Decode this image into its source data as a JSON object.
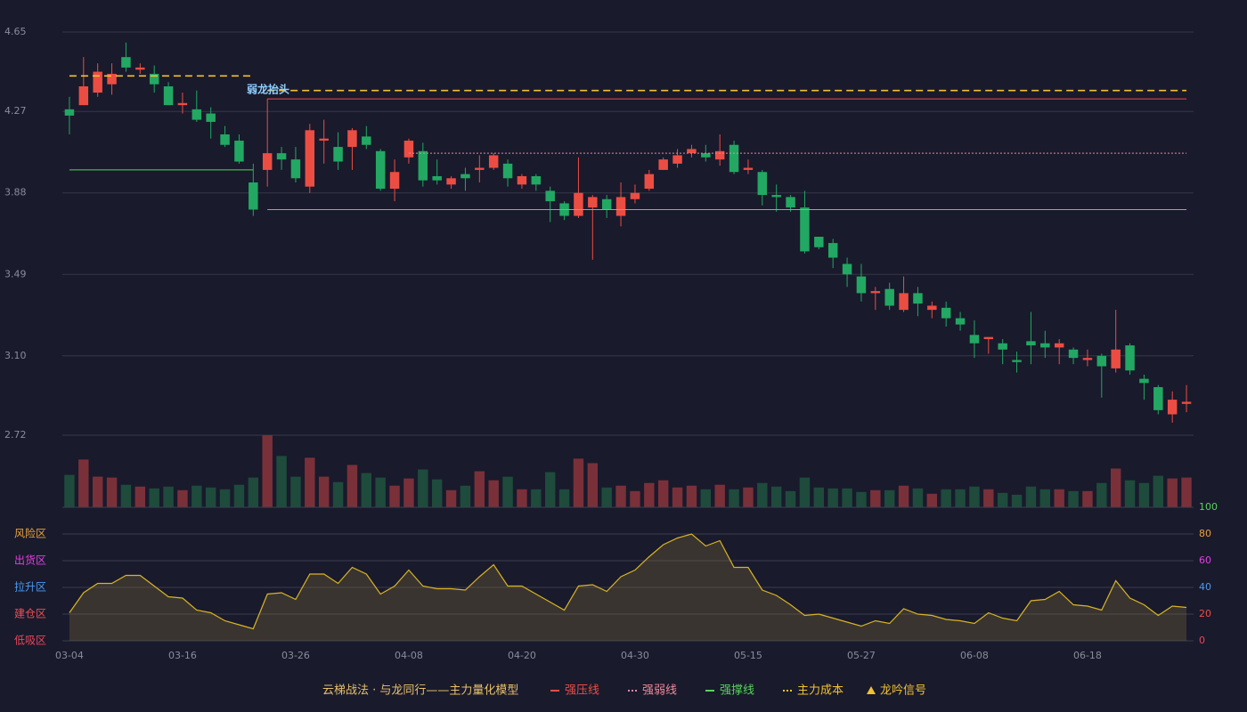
{
  "chart_data": [
    {
      "type": "candlestick",
      "categories": [
        "03-04",
        null,
        null,
        null,
        null,
        null,
        null,
        null,
        "03-16",
        null,
        null,
        null,
        null,
        null,
        null,
        null,
        "03-26",
        null,
        null,
        null,
        null,
        null,
        null,
        null,
        "04-08",
        null,
        null,
        null,
        null,
        null,
        null,
        null,
        "04-20",
        null,
        null,
        null,
        null,
        null,
        null,
        null,
        "04-30",
        null,
        null,
        null,
        null,
        null,
        null,
        null,
        "05-15",
        null,
        null,
        null,
        null,
        null,
        null,
        null,
        "05-27",
        null,
        null,
        null,
        null,
        null,
        null,
        null,
        "06-08",
        null,
        null,
        null,
        null,
        null,
        null,
        null,
        "06-18",
        null,
        null,
        null,
        null,
        null,
        null,
        null
      ],
      "open": [
        4.28,
        4.3,
        4.36,
        4.4,
        4.53,
        4.47,
        4.45,
        4.39,
        4.3,
        4.28,
        4.26,
        4.16,
        4.13,
        3.93,
        3.99,
        4.07,
        4.04,
        3.91,
        4.13,
        4.1,
        4.1,
        4.15,
        4.08,
        3.9,
        4.05,
        4.08,
        3.96,
        3.92,
        3.97,
        3.99,
        4.0,
        4.02,
        3.92,
        3.96,
        3.89,
        3.83,
        3.77,
        3.81,
        3.85,
        3.77,
        3.85,
        3.9,
        3.99,
        4.02,
        4.07,
        4.07,
        4.04,
        4.11,
        3.99,
        3.98,
        3.87,
        3.86,
        3.81,
        3.67,
        3.64,
        3.54,
        3.48,
        3.4,
        3.42,
        3.32,
        3.4,
        3.32,
        3.33,
        3.28,
        3.2,
        3.18,
        3.16,
        3.08,
        3.17,
        3.16,
        3.14,
        3.13,
        3.08,
        3.1,
        3.04,
        3.15,
        2.99,
        2.95,
        2.82,
        2.87
      ],
      "high": [
        4.34,
        4.53,
        4.5,
        4.5,
        4.6,
        4.5,
        4.49,
        4.41,
        4.36,
        4.37,
        4.29,
        4.2,
        4.16,
        4.02,
        4.33,
        4.1,
        4.1,
        4.21,
        4.23,
        4.17,
        4.19,
        4.2,
        4.09,
        4.04,
        4.14,
        4.12,
        4.04,
        3.96,
        4.0,
        4.06,
        4.07,
        4.04,
        3.97,
        3.97,
        3.91,
        3.84,
        4.05,
        3.87,
        3.87,
        3.93,
        3.92,
        3.99,
        4.05,
        4.09,
        4.11,
        4.11,
        4.16,
        4.13,
        4.04,
        3.99,
        3.92,
        3.87,
        3.89,
        3.67,
        3.66,
        3.57,
        3.54,
        3.43,
        3.45,
        3.48,
        3.43,
        3.36,
        3.36,
        3.31,
        3.27,
        3.19,
        3.18,
        3.12,
        3.31,
        3.22,
        3.18,
        3.14,
        3.13,
        3.11,
        3.32,
        3.16,
        3.01,
        2.96,
        2.93,
        2.96
      ],
      "low": [
        4.16,
        4.3,
        4.34,
        4.35,
        4.46,
        4.45,
        4.36,
        4.3,
        4.26,
        4.22,
        4.14,
        4.1,
        4.02,
        3.77,
        3.91,
        3.99,
        3.93,
        3.88,
        4.02,
        3.99,
        3.99,
        4.09,
        3.89,
        3.84,
        4.02,
        3.91,
        3.92,
        3.9,
        3.89,
        3.93,
        3.99,
        3.91,
        3.9,
        3.89,
        3.74,
        3.75,
        3.76,
        3.56,
        3.76,
        3.72,
        3.83,
        3.89,
        3.99,
        4.0,
        4.05,
        4.03,
        4.01,
        3.97,
        3.97,
        3.82,
        3.79,
        3.79,
        3.59,
        3.61,
        3.52,
        3.43,
        3.36,
        3.32,
        3.32,
        3.31,
        3.29,
        3.28,
        3.24,
        3.22,
        3.09,
        3.11,
        3.06,
        3.02,
        3.06,
        3.09,
        3.06,
        3.06,
        3.05,
        2.9,
        3.02,
        3.01,
        2.89,
        2.82,
        2.78,
        2.83
      ],
      "close": [
        4.25,
        4.39,
        4.46,
        4.45,
        4.48,
        4.48,
        4.4,
        4.3,
        4.31,
        4.23,
        4.22,
        4.11,
        4.03,
        3.8,
        4.07,
        4.04,
        3.95,
        4.18,
        4.14,
        4.03,
        4.18,
        4.11,
        3.9,
        3.98,
        4.13,
        3.94,
        3.94,
        3.95,
        3.95,
        4.0,
        4.06,
        3.95,
        3.96,
        3.92,
        3.84,
        3.77,
        3.88,
        3.86,
        3.8,
        3.86,
        3.88,
        3.97,
        4.04,
        4.06,
        4.09,
        4.05,
        4.08,
        3.98,
        4.0,
        3.87,
        3.86,
        3.81,
        3.6,
        3.62,
        3.57,
        3.49,
        3.4,
        3.41,
        3.34,
        3.4,
        3.35,
        3.34,
        3.28,
        3.25,
        3.16,
        3.19,
        3.13,
        3.07,
        3.15,
        3.14,
        3.16,
        3.09,
        3.09,
        3.05,
        3.13,
        3.03,
        2.97,
        2.84,
        2.89,
        2.88
      ],
      "up_color": "#ec4d43",
      "down_color": "#22a862",
      "ylim": [
        2.72,
        4.65
      ],
      "yticks": [
        4.65,
        4.27,
        3.88,
        3.49,
        {
          "value": 3.1,
          "label": "3.10"
        },
        2.72
      ],
      "grid": true,
      "annotation": "弱龙抬头",
      "lines": [
        {
          "name": "强压线",
          "color": "#ec4d43",
          "style": "solid",
          "values": [
            null,
            null,
            null,
            null,
            null,
            null,
            null,
            null,
            null,
            null,
            null,
            null,
            null,
            null,
            4.33,
            4.33,
            4.33,
            4.33,
            4.33,
            4.33,
            4.33,
            4.33,
            4.33,
            4.33,
            4.33,
            4.33,
            4.33,
            4.33,
            4.33,
            4.33,
            4.33,
            4.33,
            4.33,
            4.33,
            4.33,
            4.33,
            4.33,
            4.33,
            4.33,
            4.33,
            4.33,
            4.33,
            4.33,
            4.33,
            4.33,
            4.33,
            4.33,
            4.33,
            4.33,
            4.33,
            4.33,
            4.33,
            4.33,
            4.33,
            4.33,
            4.33,
            4.33,
            4.33,
            4.33,
            4.33,
            4.33,
            4.33,
            4.33,
            4.33,
            4.33,
            4.33,
            4.33,
            4.33,
            4.33,
            4.33,
            4.33,
            4.33,
            4.33,
            4.33,
            4.33,
            4.33,
            4.33,
            4.33,
            4.33,
            4.33
          ]
        },
        {
          "name": "强弱线",
          "color": "#f08a9a",
          "style": "dotted",
          "values": [
            null,
            null,
            null,
            null,
            null,
            null,
            null,
            null,
            null,
            null,
            null,
            null,
            null,
            null,
            null,
            null,
            null,
            null,
            null,
            null,
            null,
            null,
            null,
            null,
            4.07,
            4.07,
            4.07,
            4.07,
            4.07,
            4.07,
            4.07,
            4.07,
            4.07,
            4.07,
            4.07,
            4.07,
            4.07,
            4.07,
            4.07,
            4.07,
            4.07,
            4.07,
            4.07,
            4.07,
            4.07,
            4.07,
            4.07,
            4.07,
            4.07,
            4.07,
            4.07,
            4.07,
            4.07,
            4.07,
            4.07,
            4.07,
            4.07,
            4.07,
            4.07,
            4.07,
            4.07,
            4.07,
            4.07,
            4.07,
            4.07,
            4.07,
            4.07,
            4.07,
            4.07,
            4.07,
            4.07,
            4.07,
            4.07,
            4.07,
            4.07,
            4.07,
            4.07,
            4.07,
            4.07,
            4.07
          ]
        },
        {
          "name": "强撑线",
          "color": "#56d35a",
          "style": "solid",
          "values": [
            3.99,
            3.99,
            3.99,
            3.99,
            3.99,
            3.99,
            3.99,
            3.99,
            3.99,
            3.99,
            3.99,
            3.99,
            3.99,
            3.99,
            3.8,
            3.8,
            3.8,
            3.8,
            3.8,
            3.8,
            3.8,
            3.8,
            3.8,
            3.8,
            3.8,
            3.8,
            3.8,
            3.8,
            3.8,
            3.8,
            3.8,
            3.8,
            3.8,
            3.8,
            3.8,
            3.8,
            3.8,
            3.8,
            3.8,
            3.8,
            3.8,
            3.8,
            3.8,
            3.8,
            3.8,
            3.8,
            3.8,
            3.8,
            3.8,
            3.8,
            3.8,
            3.8,
            3.8,
            3.8,
            3.8,
            3.8,
            3.8,
            3.8,
            3.8,
            3.8,
            3.8,
            3.8,
            3.8,
            3.8,
            3.8,
            3.8,
            3.8,
            3.8,
            3.8,
            3.8,
            3.8,
            3.8,
            3.8,
            3.8,
            3.8,
            3.8,
            3.8,
            3.8,
            3.8,
            3.8
          ]
        },
        {
          "name": "主力成本",
          "color": "#f2c230",
          "style": "dashed",
          "values": [
            4.44,
            4.44,
            4.44,
            4.44,
            4.44,
            4.44,
            4.44,
            4.44,
            4.44,
            4.44,
            4.44,
            4.44,
            4.44,
            4.44,
            4.37,
            4.37,
            4.37,
            4.37,
            4.37,
            4.37,
            4.37,
            4.37,
            4.37,
            4.37,
            4.37,
            4.37,
            4.37,
            4.37,
            4.37,
            4.37,
            4.37,
            4.37,
            4.37,
            4.37,
            4.37,
            4.37,
            4.37,
            4.37,
            4.37,
            4.37,
            4.37,
            4.37,
            4.37,
            4.37,
            4.37,
            4.37,
            4.37,
            4.37,
            4.37,
            4.37,
            4.37,
            4.37,
            4.37,
            4.37,
            4.37,
            4.37,
            4.37,
            4.37,
            4.37,
            4.37,
            4.37,
            4.37,
            4.37,
            4.37,
            4.37,
            4.37,
            4.37,
            4.37,
            4.37,
            4.37,
            4.37,
            4.37,
            4.37,
            4.37,
            4.37,
            4.37,
            4.37,
            4.37,
            4.37,
            4.37
          ]
        }
      ],
      "legend": {
        "title": "云梯战法 · 与龙同行——主力量化模型",
        "title_color": "#e8c06a",
        "signal": {
          "name": "龙吟信号",
          "color": "#f2c230"
        }
      }
    },
    {
      "type": "volume",
      "values": [
        36,
        53,
        34,
        33,
        25,
        23,
        21,
        23,
        19,
        24,
        22,
        20,
        25,
        33,
        80,
        57,
        34,
        55,
        34,
        28,
        47,
        38,
        33,
        24,
        32,
        42,
        31,
        19,
        24,
        40,
        30,
        34,
        20,
        20,
        39,
        20,
        54,
        49,
        22,
        24,
        18,
        27,
        30,
        22,
        24,
        20,
        25,
        20,
        22,
        27,
        23,
        18,
        33,
        22,
        21,
        21,
        17,
        19,
        19,
        24,
        21,
        15,
        20,
        20,
        23,
        20,
        16,
        14,
        23,
        20,
        20,
        18,
        18,
        27,
        43,
        30,
        27,
        35,
        32,
        33
      ],
      "ylim": [
        0,
        80
      ],
      "up_color": "#7a3039",
      "down_color": "#1e4b3c"
    },
    {
      "type": "area",
      "values": [
        21,
        36,
        43,
        43,
        49,
        49,
        41,
        33,
        32,
        23,
        21,
        15,
        12,
        9,
        35,
        36,
        31,
        50,
        50,
        43,
        55,
        50,
        35,
        41,
        53,
        41,
        39,
        39,
        38,
        48,
        57,
        41,
        41,
        35,
        29,
        23,
        41,
        42,
        37,
        48,
        53,
        63,
        72,
        77,
        80,
        71,
        75,
        55,
        55,
        38,
        34,
        27,
        19,
        20,
        17,
        14,
        11,
        15,
        13,
        24,
        20,
        19,
        16,
        15,
        13,
        21,
        17,
        15,
        30,
        31,
        37,
        27,
        26,
        23,
        45,
        32,
        27,
        19,
        26,
        25
      ],
      "color": "#d8b423",
      "ylim": [
        0,
        100
      ],
      "yticks": [
        0,
        20,
        40,
        60,
        80,
        100
      ],
      "ytick_colors": [
        "#e8475a",
        "#ec4d43",
        "#4a9af0",
        "#e040e0",
        "#e8a23a",
        "#56d35a"
      ],
      "zones": [
        {
          "value": 80,
          "label": "风险区",
          "color": "#e8a23a"
        },
        {
          "value": 60,
          "label": "出货区",
          "color": "#e040e0"
        },
        {
          "value": 40,
          "label": "拉升区",
          "color": "#4a9af0"
        },
        {
          "value": 20,
          "label": "建仓区",
          "color": "#f05050"
        },
        {
          "value": 0,
          "label": "低吸区",
          "color": "#e8475a"
        }
      ]
    }
  ]
}
